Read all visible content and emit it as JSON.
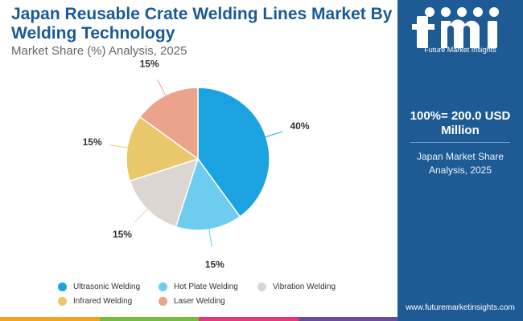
{
  "header": {
    "title": "Japan Reusable Crate Welding Lines Market By Welding Technology",
    "subtitle": "Market Share (%) Analysis, 2025"
  },
  "chart_data": {
    "type": "pie",
    "title": "Japan Reusable Crate Welding Lines Market By Welding Technology",
    "subtitle": "Market Share (%) Analysis, 2025",
    "categories": [
      "Ultrasonic Welding",
      "Hot Plate Welding",
      "Vibration Welding",
      "Infrared Welding",
      "Laser Welding"
    ],
    "values": [
      40,
      15,
      15,
      15,
      15
    ],
    "labels": [
      "40%",
      "15%",
      "15%",
      "15%",
      "15%"
    ],
    "colors": [
      "#1aa3e0",
      "#6ccdf1",
      "#dbd6d2",
      "#ebc76b",
      "#eba38b"
    ],
    "legend_position": "bottom"
  },
  "sidebar": {
    "logo_text": "Future Market Insights",
    "total": "100%= 200.0 USD Million",
    "description": "Japan Market Share Analysis, 2025",
    "url": "www.futuremarketinsights.com"
  },
  "bottom_bar_colors": [
    "#f4a11d",
    "#7ab940",
    "#e6367b",
    "#6a4a9b"
  ]
}
